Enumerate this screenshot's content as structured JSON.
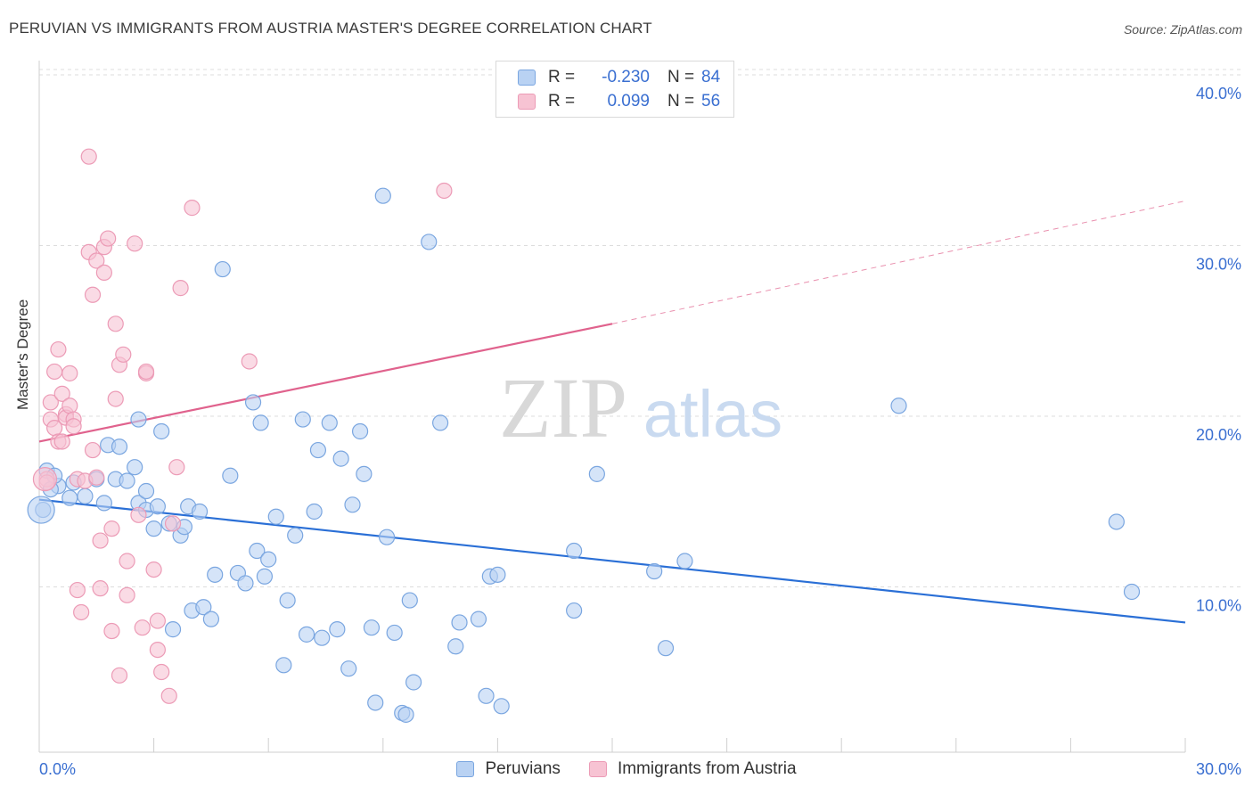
{
  "title": "PERUVIAN VS IMMIGRANTS FROM AUSTRIA MASTER'S DEGREE CORRELATION CHART",
  "source": "Source: ZipAtlas.com",
  "watermark": {
    "zip": "ZIP",
    "atlas": "atlas"
  },
  "legend": {
    "rows": [
      {
        "r_label": "R =",
        "r_value": "-0.230",
        "n_label": "N =",
        "n_value": "84"
      },
      {
        "r_label": "R =",
        "r_value": "0.099",
        "n_label": "N =",
        "n_value": "56"
      }
    ]
  },
  "bottom_legend": [
    "Peruvians",
    "Immigrants from Austria"
  ],
  "colors": {
    "blue_fill": "#b9d2f3",
    "blue_stroke": "#7aa6e0",
    "blue_line": "#2a6fd6",
    "pink_fill": "#f7c3d3",
    "pink_stroke": "#ec9bb6",
    "pink_line": "#e0628d",
    "grid": "#dddddd",
    "tick_text": "#3a6fd1"
  },
  "chart_data": {
    "type": "scatter",
    "title": "PERUVIAN VS IMMIGRANTS FROM AUSTRIA MASTER'S DEGREE CORRELATION CHART",
    "xlabel": "",
    "ylabel": "Master's Degree",
    "xlim": [
      0,
      30
    ],
    "ylim": [
      0,
      40
    ],
    "x_tick_labels": [
      {
        "value": 0,
        "label": "0.0%"
      },
      {
        "value": 30,
        "label": "30.0%"
      }
    ],
    "y_tick_labels": [
      {
        "value": 10,
        "label": "10.0%"
      },
      {
        "value": 20,
        "label": "20.0%"
      },
      {
        "value": 30,
        "label": "30.0%"
      },
      {
        "value": 40,
        "label": "40.0%"
      }
    ],
    "series": [
      {
        "name": "Peruvians",
        "r": -0.23,
        "n": 84,
        "trend": {
          "x0": 0,
          "y0": 14.8,
          "x1": 30,
          "y1": 7.6
        },
        "points": [
          [
            0.2,
            16.5
          ],
          [
            0.5,
            15.6
          ],
          [
            0.3,
            15.4
          ],
          [
            0.8,
            14.9
          ],
          [
            0.9,
            15.8
          ],
          [
            1.2,
            15.0
          ],
          [
            1.5,
            16.0
          ],
          [
            1.7,
            14.6
          ],
          [
            1.8,
            18.0
          ],
          [
            2.1,
            17.9
          ],
          [
            2.0,
            16.0
          ],
          [
            2.3,
            15.9
          ],
          [
            2.5,
            16.7
          ],
          [
            2.6,
            19.5
          ],
          [
            2.6,
            14.6
          ],
          [
            2.8,
            15.3
          ],
          [
            2.8,
            14.2
          ],
          [
            3.0,
            13.1
          ],
          [
            3.1,
            14.4
          ],
          [
            3.2,
            18.8
          ],
          [
            3.4,
            13.4
          ],
          [
            3.5,
            7.2
          ],
          [
            3.7,
            12.7
          ],
          [
            3.8,
            13.2
          ],
          [
            3.9,
            14.4
          ],
          [
            4.0,
            8.3
          ],
          [
            4.2,
            14.1
          ],
          [
            4.3,
            8.5
          ],
          [
            4.5,
            7.8
          ],
          [
            4.6,
            10.4
          ],
          [
            4.8,
            28.3
          ],
          [
            5.0,
            16.2
          ],
          [
            5.2,
            10.5
          ],
          [
            5.4,
            9.9
          ],
          [
            5.6,
            20.5
          ],
          [
            5.7,
            11.8
          ],
          [
            5.8,
            19.3
          ],
          [
            5.9,
            10.3
          ],
          [
            6.0,
            11.3
          ],
          [
            6.2,
            13.8
          ],
          [
            6.4,
            5.1
          ],
          [
            6.5,
            8.9
          ],
          [
            6.7,
            12.7
          ],
          [
            6.9,
            19.5
          ],
          [
            7.0,
            6.9
          ],
          [
            7.2,
            14.1
          ],
          [
            7.3,
            17.7
          ],
          [
            7.4,
            6.7
          ],
          [
            7.6,
            19.3
          ],
          [
            7.8,
            7.2
          ],
          [
            7.9,
            17.2
          ],
          [
            8.1,
            4.9
          ],
          [
            8.2,
            14.5
          ],
          [
            8.4,
            18.8
          ],
          [
            8.5,
            16.3
          ],
          [
            8.7,
            7.3
          ],
          [
            8.8,
            2.9
          ],
          [
            9.0,
            32.6
          ],
          [
            9.1,
            12.6
          ],
          [
            9.3,
            7.0
          ],
          [
            9.5,
            2.3
          ],
          [
            9.6,
            2.2
          ],
          [
            9.7,
            8.9
          ],
          [
            9.8,
            4.1
          ],
          [
            10.2,
            29.9
          ],
          [
            10.5,
            19.3
          ],
          [
            10.9,
            6.2
          ],
          [
            11.0,
            7.6
          ],
          [
            11.5,
            7.8
          ],
          [
            11.7,
            3.3
          ],
          [
            11.8,
            10.3
          ],
          [
            12.0,
            10.4
          ],
          [
            12.1,
            2.7
          ],
          [
            14.0,
            11.8
          ],
          [
            14.0,
            8.3
          ],
          [
            14.6,
            16.3
          ],
          [
            16.1,
            10.6
          ],
          [
            16.4,
            6.1
          ],
          [
            16.9,
            11.2
          ],
          [
            22.5,
            20.3
          ],
          [
            28.2,
            13.5
          ],
          [
            28.6,
            9.4
          ],
          [
            0.1,
            14.2
          ],
          [
            0.4,
            16.2
          ]
        ]
      },
      {
        "name": "Immigrants from Austria",
        "r": 0.099,
        "n": 56,
        "trend": {
          "x0": 0,
          "y0": 18.2,
          "x1": 15,
          "y1": 25.1,
          "dash_x1": 30,
          "dash_y1": 32.3
        },
        "points": [
          [
            0.2,
            16.0
          ],
          [
            0.3,
            20.5
          ],
          [
            0.3,
            19.5
          ],
          [
            0.4,
            19.0
          ],
          [
            0.4,
            22.3
          ],
          [
            0.5,
            23.6
          ],
          [
            0.5,
            18.2
          ],
          [
            0.6,
            21.0
          ],
          [
            0.6,
            18.2
          ],
          [
            0.7,
            19.8
          ],
          [
            0.7,
            19.6
          ],
          [
            0.8,
            20.3
          ],
          [
            0.8,
            22.2
          ],
          [
            0.9,
            19.5
          ],
          [
            0.9,
            19.1
          ],
          [
            1.0,
            16.0
          ],
          [
            1.0,
            9.5
          ],
          [
            1.1,
            8.2
          ],
          [
            1.2,
            15.9
          ],
          [
            1.3,
            34.9
          ],
          [
            1.3,
            29.3
          ],
          [
            1.4,
            26.8
          ],
          [
            1.4,
            17.7
          ],
          [
            1.5,
            28.8
          ],
          [
            1.6,
            9.6
          ],
          [
            1.6,
            12.4
          ],
          [
            1.7,
            29.6
          ],
          [
            1.7,
            28.1
          ],
          [
            1.8,
            30.1
          ],
          [
            1.9,
            13.1
          ],
          [
            1.9,
            7.1
          ],
          [
            2.0,
            25.1
          ],
          [
            2.0,
            20.7
          ],
          [
            2.1,
            22.7
          ],
          [
            2.1,
            4.5
          ],
          [
            2.2,
            23.3
          ],
          [
            2.3,
            11.2
          ],
          [
            2.3,
            9.2
          ],
          [
            2.5,
            29.8
          ],
          [
            2.6,
            13.9
          ],
          [
            2.7,
            7.3
          ],
          [
            2.8,
            22.2
          ],
          [
            2.8,
            22.3
          ],
          [
            3.0,
            10.7
          ],
          [
            3.1,
            6.0
          ],
          [
            3.1,
            7.7
          ],
          [
            3.2,
            4.7
          ],
          [
            3.4,
            3.3
          ],
          [
            3.5,
            13.4
          ],
          [
            3.6,
            16.7
          ],
          [
            3.7,
            27.2
          ],
          [
            4.0,
            31.9
          ],
          [
            5.5,
            22.9
          ],
          [
            10.6,
            32.9
          ],
          [
            0.2,
            15.8
          ],
          [
            1.5,
            16.1
          ]
        ]
      }
    ]
  }
}
